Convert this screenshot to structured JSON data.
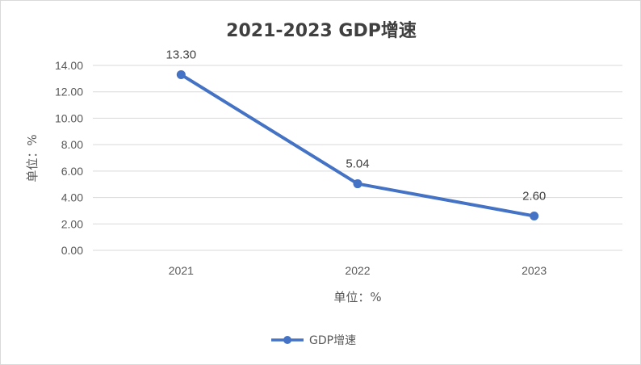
{
  "chart_data": {
    "type": "line",
    "title": "2021-2023   GDP增速",
    "categories": [
      "2021",
      "2022",
      "2023"
    ],
    "series": [
      {
        "name": "GDP增速",
        "values": [
          13.3,
          5.04,
          2.6
        ],
        "color": "#4472c4"
      }
    ],
    "data_labels": [
      "13.30",
      "5.04",
      "2.60"
    ],
    "ylabel": "单位：%",
    "xlabel": "单位：%",
    "ylim": [
      0,
      14
    ],
    "y_ticks": [
      "0.00",
      "2.00",
      "4.00",
      "6.00",
      "8.00",
      "10.00",
      "12.00",
      "14.00"
    ],
    "grid": true,
    "legend_position": "bottom"
  }
}
